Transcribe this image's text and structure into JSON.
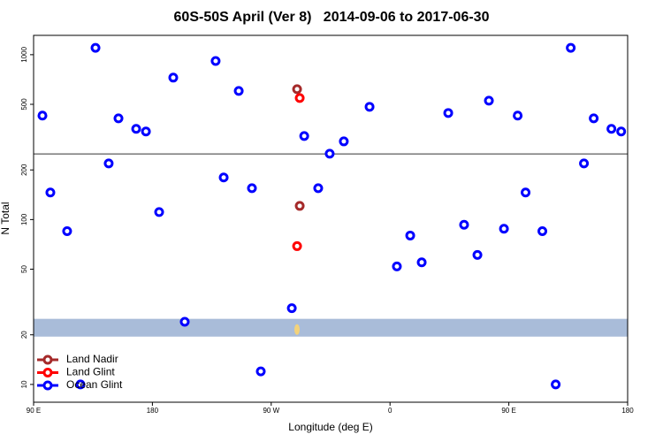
{
  "chart_data": {
    "type": "scatter",
    "title": "60S-50S April (Ver 8)   2014-09-06 to 2017-06-30",
    "x_label": "Longitude (deg E)",
    "y_label": "N Total",
    "xlim": [
      90,
      540
    ],
    "ylim": [
      7.8,
      1310
    ],
    "log_y": true,
    "xticks": [
      {
        "value": 90,
        "label": "90 E"
      },
      180,
      {
        "value": 270,
        "label": "90 W"
      },
      {
        "value": 360,
        "label": "0"
      },
      {
        "value": 450,
        "label": "90 E"
      },
      {
        "value": 540,
        "label": "180"
      }
    ],
    "yticks": [
      10,
      20,
      50,
      100,
      200,
      500,
      1000
    ],
    "reference_line": 250,
    "band": [
      19.5,
      25
    ],
    "legend": "bottom-left",
    "series": [
      {
        "name": "Land Nadir",
        "color": "#a52a2a",
        "x": [
          289.6,
          291.6
        ],
        "values": [
          618,
          121
        ]
      },
      {
        "name": "Land Glint",
        "color": "#ff0000",
        "x": [
          291.6,
          289.6
        ],
        "values": [
          546,
          69
        ]
      },
      {
        "name": "Ocean Glint",
        "color": "#0000ff",
        "x": [
          96.7,
          102.7,
          115.4,
          125.5,
          136.9,
          146.9,
          154.3,
          167.7,
          175.1,
          185.1,
          195.8,
          204.5,
          227.9,
          234.0,
          245.4,
          255.4,
          262.1,
          285.6,
          295.0,
          305.6,
          314.3,
          325.0,
          344.5,
          365.2,
          375.3,
          384.0,
          404.1,
          416.1,
          426.2,
          434.9,
          446.3,
          456.7,
          462.7,
          475.4,
          485.5,
          496.9,
          506.9,
          514.3,
          527.7,
          535.1
        ],
        "values": [
          427,
          146,
          85,
          10,
          1100,
          219,
          411,
          355,
          342,
          111,
          726,
          24,
          916,
          180,
          603,
          155,
          12,
          29,
          321,
          155,
          251,
          298,
          483,
          52,
          80,
          55,
          443,
          93,
          61,
          526,
          88,
          427,
          146,
          85,
          10,
          1100,
          219,
          411,
          355,
          342
        ]
      }
    ]
  }
}
